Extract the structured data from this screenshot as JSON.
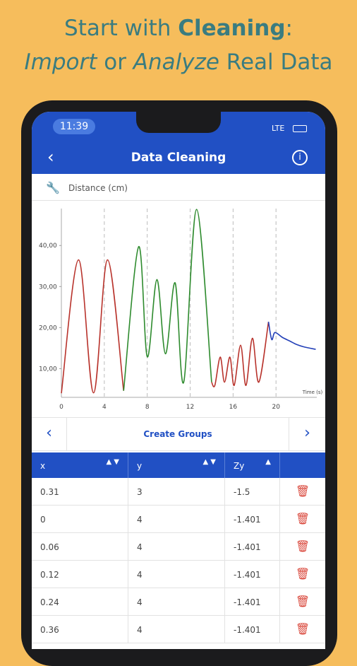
{
  "headline": {
    "line1": [
      "Start with ",
      "Cleaning",
      ":"
    ],
    "line2": [
      "Import",
      " or ",
      "Analyze",
      " Real Data"
    ]
  },
  "status": {
    "time": "11:39",
    "network": "LTE"
  },
  "nav": {
    "title": "Data Cleaning"
  },
  "sensor": {
    "label": "Distance (cm)"
  },
  "chart_data": {
    "type": "line",
    "xlabel": "Time (s)",
    "xlim": [
      0,
      23.8
    ],
    "ylim": [
      3,
      49
    ],
    "xticks": [
      0,
      4,
      8,
      12,
      16,
      20
    ],
    "yticks": [
      {
        "value": 10,
        "label": "10,00"
      },
      {
        "value": 20,
        "label": "20,00"
      },
      {
        "value": 30,
        "label": "30,00"
      },
      {
        "value": 40,
        "label": "40,00"
      }
    ],
    "grid": true,
    "series": [
      {
        "color": "#b8322b",
        "x": [
          0,
          1.6,
          3.0,
          4.3,
          5.8
        ],
        "values": [
          4,
          36.5,
          4.1,
          36.5,
          4.6
        ]
      },
      {
        "color": "#2e8b2e",
        "x": [
          5.8,
          7.2,
          8.0,
          8.9,
          9.7,
          10.6,
          11.4,
          12.6,
          14.0
        ],
        "values": [
          4.6,
          39.7,
          12.9,
          31.7,
          13.6,
          30.9,
          6.7,
          48.8,
          6.7
        ]
      },
      {
        "color": "#b8322b",
        "x": [
          14.0,
          14.3,
          14.8,
          15.2,
          15.7,
          16.1,
          16.7,
          17.2,
          17.8,
          18.4,
          19.3
        ],
        "values": [
          6.7,
          5.9,
          12.8,
          6.7,
          12.8,
          5.9,
          15.7,
          5.9,
          17.4,
          6.7,
          21.4
        ]
      },
      {
        "color": "#2340b8",
        "x": [
          19.3,
          19.6,
          19.9,
          20.6,
          21.3,
          21.9,
          22.6,
          23.7
        ],
        "values": [
          21.4,
          17.1,
          18.8,
          17.6,
          16.7,
          15.9,
          15.3,
          14.7
        ]
      }
    ]
  },
  "groups": {
    "label": "Create Groups"
  },
  "table": {
    "headers": [
      "x",
      "y",
      "Zy"
    ],
    "rows": [
      [
        0.31,
        3,
        -1.5
      ],
      [
        0,
        4,
        -1.401
      ],
      [
        0.06,
        4,
        -1.401
      ],
      [
        0.12,
        4,
        -1.401
      ],
      [
        0.24,
        4,
        -1.401
      ],
      [
        0.36,
        4,
        -1.401
      ]
    ]
  }
}
